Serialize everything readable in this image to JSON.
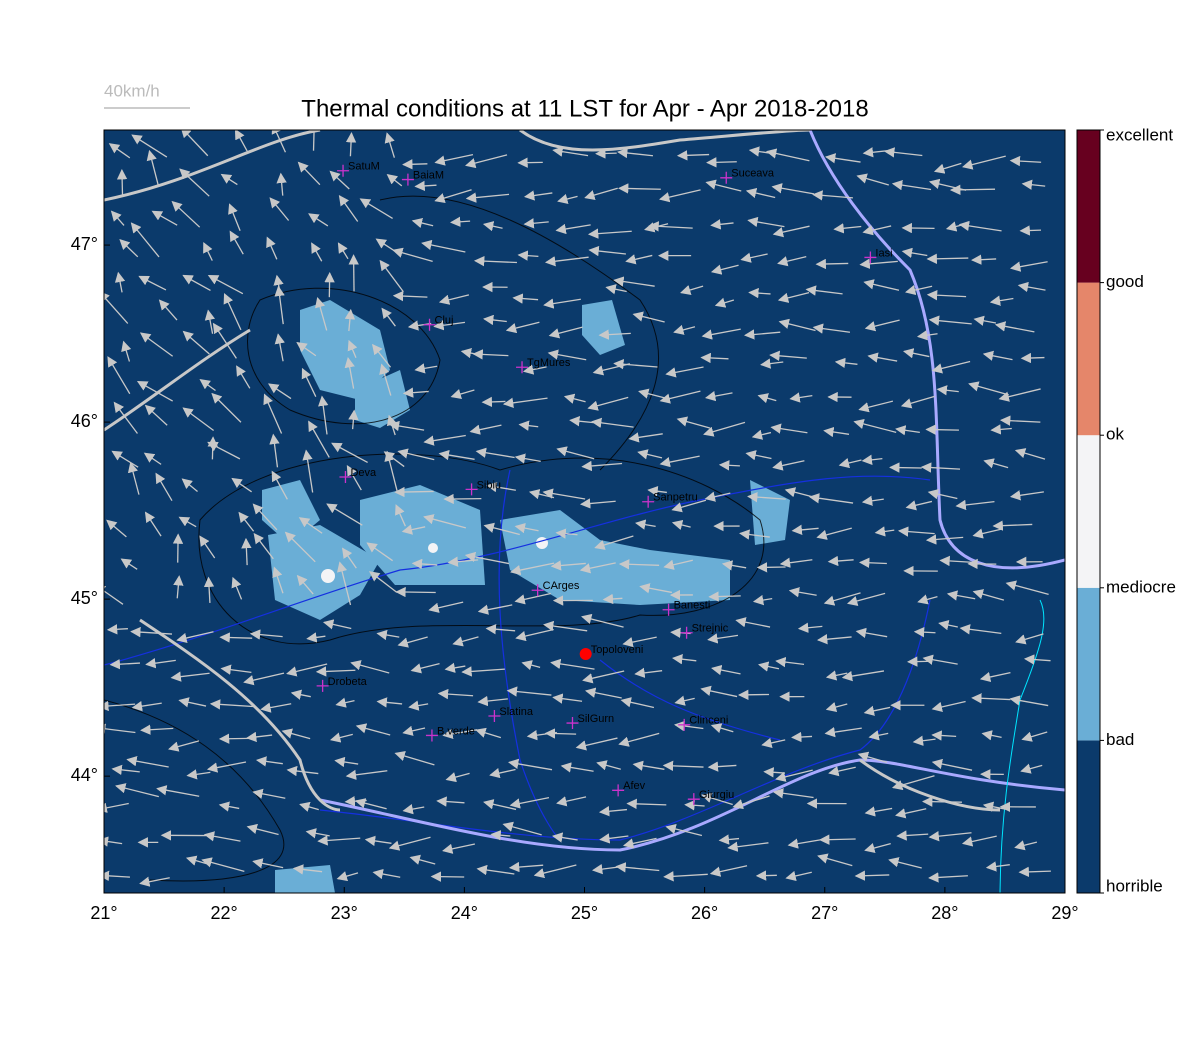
{
  "title": "Thermal conditions at 11 LST for Apr - Apr  2018-2018",
  "wind_scale": {
    "label": "40km/h",
    "color": "#bbbbbb"
  },
  "map": {
    "xlim": [
      21,
      29
    ],
    "ylim": [
      43.34,
      47.65
    ],
    "xticks": [
      {
        "value": 21,
        "label": "21°"
      },
      {
        "value": 22,
        "label": "22°"
      },
      {
        "value": 23,
        "label": "23°"
      },
      {
        "value": 24,
        "label": "24°"
      },
      {
        "value": 25,
        "label": "25°"
      },
      {
        "value": 26,
        "label": "26°"
      },
      {
        "value": 27,
        "label": "27°"
      },
      {
        "value": 28,
        "label": "28°"
      },
      {
        "value": 29,
        "label": "29°"
      }
    ],
    "yticks": [
      {
        "value": 44,
        "label": "44°"
      },
      {
        "value": 45,
        "label": "45°"
      },
      {
        "value": 46,
        "label": "46°"
      },
      {
        "value": 47,
        "label": "47°"
      }
    ],
    "background": "#0b3a6b",
    "marker_color": "#cc33cc",
    "highlight_color": "#ff0000",
    "cities": [
      {
        "name": "SatuM",
        "lon": 22.99,
        "lat": 47.42
      },
      {
        "name": "BaiaM",
        "lon": 23.53,
        "lat": 47.37
      },
      {
        "name": "Suceava",
        "lon": 26.18,
        "lat": 47.38
      },
      {
        "name": "Iasi",
        "lon": 27.38,
        "lat": 46.93
      },
      {
        "name": "Cluj",
        "lon": 23.71,
        "lat": 46.55
      },
      {
        "name": "TgMures",
        "lon": 24.48,
        "lat": 46.31
      },
      {
        "name": "Deva",
        "lon": 23.01,
        "lat": 45.69
      },
      {
        "name": "Sibiu",
        "lon": 24.06,
        "lat": 45.62
      },
      {
        "name": "Sanpetru",
        "lon": 25.53,
        "lat": 45.55
      },
      {
        "name": "CArges",
        "lon": 24.61,
        "lat": 45.05
      },
      {
        "name": "Banesti",
        "lon": 25.7,
        "lat": 44.94
      },
      {
        "name": "Strejnic",
        "lon": 25.85,
        "lat": 44.81
      },
      {
        "name": "Topoloveni",
        "lon": 25.01,
        "lat": 44.69,
        "highlight": true
      },
      {
        "name": "Drobeta",
        "lon": 22.82,
        "lat": 44.51
      },
      {
        "name": "Slatina",
        "lon": 24.25,
        "lat": 44.34
      },
      {
        "name": "SilGurn",
        "lon": 24.9,
        "lat": 44.3
      },
      {
        "name": "Clinceni",
        "lon": 25.83,
        "lat": 44.29
      },
      {
        "name": "B.verde",
        "lon": 23.73,
        "lat": 44.23
      },
      {
        "name": "Afev",
        "lon": 25.28,
        "lat": 43.92
      },
      {
        "name": "Giurgiu",
        "lon": 25.91,
        "lat": 43.87
      }
    ]
  },
  "colorbar": {
    "lim": [
      0,
      5
    ],
    "levels": [
      {
        "value": 0,
        "label": "horrible"
      },
      {
        "value": 1,
        "label": "bad"
      },
      {
        "value": 2,
        "label": "mediocre"
      },
      {
        "value": 3,
        "label": "ok"
      },
      {
        "value": 4,
        "label": "good"
      },
      {
        "value": 5,
        "label": "excellent"
      }
    ],
    "colors": [
      "#0b3a6b",
      "#6aaed6",
      "#f4f4f6",
      "#e5866a",
      "#67001f"
    ]
  }
}
